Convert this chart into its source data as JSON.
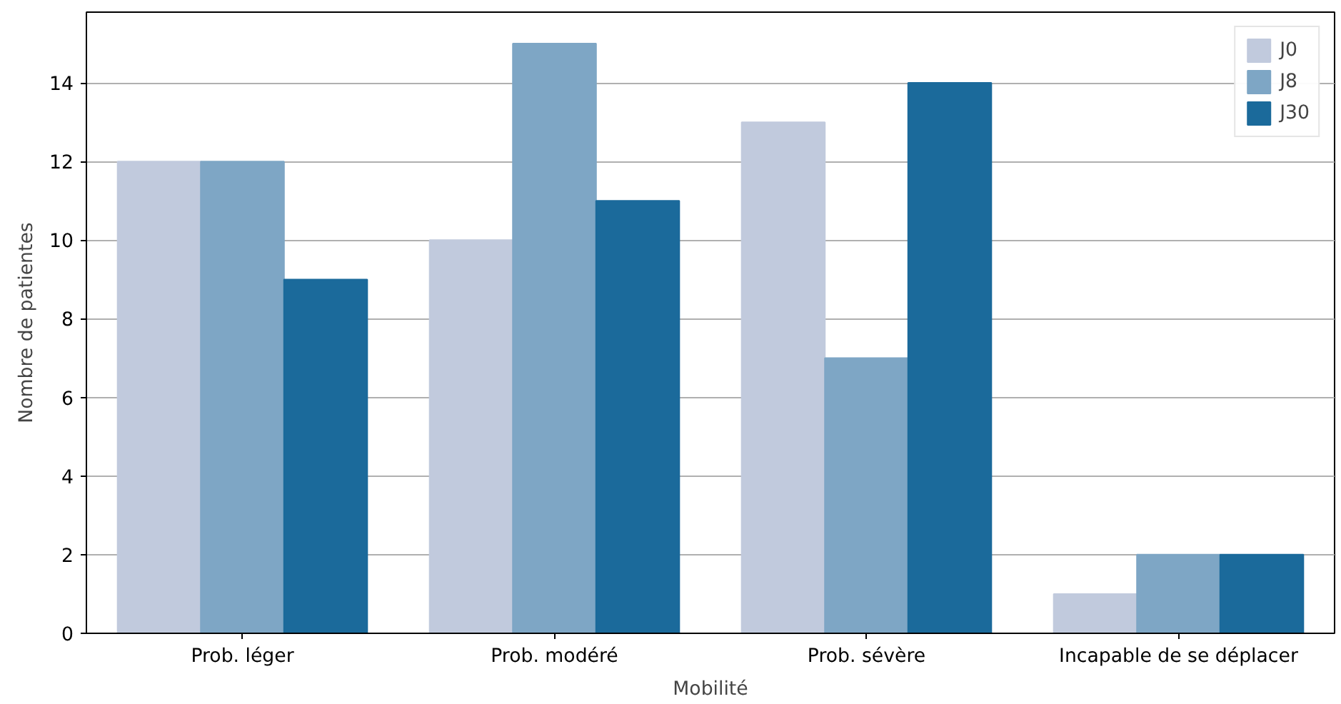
{
  "chart_data": {
    "type": "bar",
    "xlabel": "Mobilité",
    "ylabel": "Nombre de patientes",
    "categories": [
      "Prob. léger",
      "Prob. modéré",
      "Prob. sévère",
      "Incapable de se déplacer"
    ],
    "series": [
      {
        "name": "J0",
        "color": "#c1cadd",
        "values": [
          12,
          10,
          13,
          1
        ]
      },
      {
        "name": "J8",
        "color": "#7ea6c5",
        "values": [
          12,
          15,
          7,
          2
        ]
      },
      {
        "name": "J30",
        "color": "#1b6a9b",
        "values": [
          9,
          11,
          14,
          2
        ]
      }
    ],
    "ylim": [
      0,
      15.8
    ],
    "yticks": [
      0,
      2,
      4,
      6,
      8,
      10,
      12,
      14
    ],
    "grid": "y",
    "legend": "top right"
  }
}
